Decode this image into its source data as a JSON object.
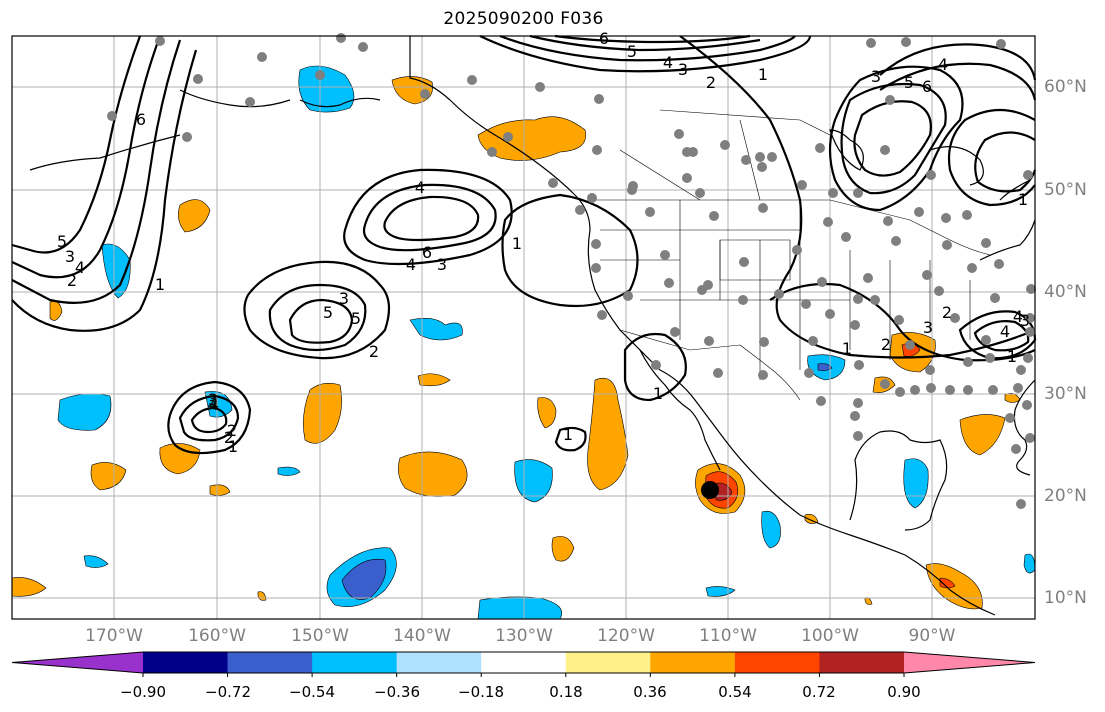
{
  "title": "2025090200 F036",
  "map": {
    "longitude_labels": [
      "170°W",
      "160°W",
      "150°W",
      "140°W",
      "130°W",
      "120°W",
      "110°W",
      "100°W",
      "90°W"
    ],
    "latitude_labels": [
      "60°N",
      "50°N",
      "40°N",
      "30°N",
      "20°N",
      "10°N"
    ],
    "contour_labels": [
      "6",
      "5",
      "4",
      "3",
      "2",
      "1",
      "6",
      "4",
      "3",
      "2",
      "5",
      "4",
      "3",
      "6",
      "4",
      "5",
      "3",
      "2",
      "1",
      "5",
      "4",
      "3",
      "2",
      "1",
      "3",
      "2",
      "1",
      "1",
      "1",
      "1",
      "3",
      "4",
      "6",
      "5",
      "2",
      "3",
      "4",
      "1",
      "2",
      "1",
      "4",
      "3"
    ]
  },
  "colorbar": {
    "ticks": [
      "−0.90",
      "−0.72",
      "−0.54",
      "−0.36",
      "−0.18",
      "0.18",
      "0.36",
      "0.54",
      "0.72",
      "0.90"
    ],
    "colors": [
      "#9932cc",
      "#00008b",
      "#3a5fcd",
      "#00bfff",
      "#b0e2ff",
      "#ffffff",
      "#fff08a",
      "#ffa500",
      "#ff4500",
      "#b22222",
      "#ff88aa"
    ]
  }
}
